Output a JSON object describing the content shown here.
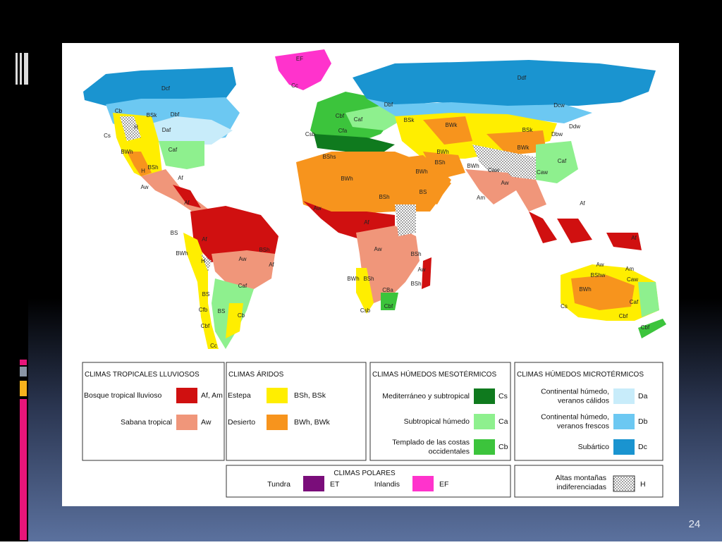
{
  "slide": {
    "number": "24"
  },
  "map": {
    "labels": [
      "EF",
      "Cc",
      "Dcf",
      "Ddf",
      "Ddw",
      "Dbf",
      "Dcw",
      "Dbf",
      "Daf",
      "BSk",
      "H",
      "Cb",
      "Cs",
      "BWh",
      "BSh",
      "Caf",
      "H",
      "Aw",
      "Af",
      "Af",
      "BS",
      "BWh",
      "H",
      "Af",
      "Aw",
      "BSh",
      "Af",
      "Caf",
      "BS",
      "Cfb",
      "BS",
      "Cb",
      "Cbf",
      "Cc",
      "Cbf",
      "Caf",
      "Csb",
      "Cfa",
      "BShs",
      "BWh",
      "BSh",
      "BWh",
      "BS",
      "BSk",
      "BWk",
      "BSk",
      "BWk",
      "BWh",
      "BSh",
      "BWh",
      "Caw",
      "Caw",
      "Caf",
      "Dbw",
      "Af",
      "Aw",
      "Aw",
      "BSh",
      "Aw",
      "BSh",
      "BWh",
      "BSh",
      "Csb",
      "Cbf",
      "CBa",
      "Am",
      "Aw",
      "Af",
      "Af",
      "Aw",
      "Am",
      "BShw",
      "Caw",
      "BWh",
      "Caf",
      "Cbf",
      "Cbf",
      "Cs"
    ]
  },
  "legend": {
    "groups": [
      {
        "title": "CLIMAS TROPICALES LLUVIOSOS",
        "items": [
          {
            "label": [
              "Bosque tropical lluvioso"
            ],
            "code": "Af, Am",
            "color": "#d01010"
          },
          {
            "label": [
              "Sabana tropical"
            ],
            "code": "Aw",
            "color": "#f0967a"
          }
        ]
      },
      {
        "title": "CLIMAS ÁRIDOS",
        "items": [
          {
            "label": [
              "Estepa"
            ],
            "code": "BSh, BSk",
            "color": "#ffee00"
          },
          {
            "label": [
              "Desierto"
            ],
            "code": "BWh, BWk",
            "color": "#f7941d"
          }
        ]
      },
      {
        "title": "CLIMAS HÚMEDOS MESOTÉRMICOS",
        "items": [
          {
            "label": [
              "Mediterráneo y subtropical"
            ],
            "code": "Cs",
            "color": "#0f7a1e"
          },
          {
            "label": [
              "Subtropical húmedo"
            ],
            "code": "Ca",
            "color": "#8ef08e"
          },
          {
            "label": [
              "Templado de las costas",
              "occidentales"
            ],
            "code": "Cb",
            "color": "#3cc43c"
          }
        ]
      },
      {
        "title": "CLIMAS HÚMEDOS MICROTÉRMICOS",
        "items": [
          {
            "label": [
              "Continental húmedo,",
              "veranos cálidos"
            ],
            "code": "Da",
            "color": "#c8ecfa"
          },
          {
            "label": [
              "Continental húmedo,",
              "veranos frescos"
            ],
            "code": "Db",
            "color": "#6cc8f2"
          },
          {
            "label": [
              "Subártico"
            ],
            "code": "Dc",
            "color": "#1a94d0"
          }
        ]
      }
    ],
    "polar": {
      "title": "CLIMAS POLARES",
      "items": [
        {
          "label": "Tundra",
          "code": "ET",
          "color": "#7a0d7a"
        },
        {
          "label": "Inlandis",
          "code": "EF",
          "color": "#ff33cc"
        }
      ]
    },
    "mountains": {
      "label": [
        "Altas montañas",
        "indiferenciadas"
      ],
      "code": "H"
    }
  }
}
